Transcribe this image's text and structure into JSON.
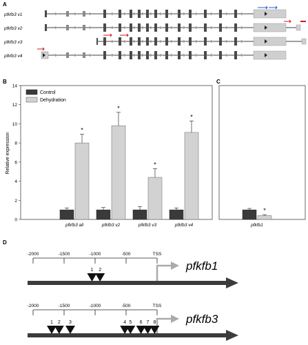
{
  "panels": {
    "a": "A",
    "b": "B",
    "c": "C",
    "d": "D"
  },
  "transcripts": [
    {
      "name": "pfkfb3 v1"
    },
    {
      "name": "pfkfb3 v2"
    },
    {
      "name": "pfkfb3 v3"
    },
    {
      "name": "pfkfb3 v4"
    }
  ],
  "legend": {
    "control": "Control",
    "dehydration": "Dehydration"
  },
  "colors": {
    "control": "#3a3a3a",
    "dehydration": "#d2d2d2",
    "exon": "#4a4a4a",
    "primer_red": "#d01a1a",
    "primer_blue": "#1f5fd0",
    "arrow_gray": "#aaaaaa"
  },
  "chart_data": [
    {
      "type": "bar",
      "ylabel": "Relative expression",
      "ylim": [
        0,
        14
      ],
      "yticks": [
        "0",
        "2",
        "4",
        "6",
        "8",
        "10",
        "12",
        "14"
      ],
      "categories": [
        "pfkfb3 all",
        "pfkfb3 v2",
        "pfkfb3 v3",
        "pfkfb3 v4"
      ],
      "series": [
        {
          "name": "Control",
          "values": [
            1.0,
            1.0,
            1.0,
            1.0
          ],
          "errors": [
            0.2,
            0.25,
            0.35,
            0.2
          ]
        },
        {
          "name": "Dehydration",
          "values": [
            8.0,
            9.8,
            4.4,
            9.1
          ],
          "errors": [
            0.9,
            1.4,
            0.9,
            1.2
          ]
        }
      ],
      "significance": [
        "*",
        "*",
        "*",
        "*"
      ]
    },
    {
      "type": "bar",
      "categories": [
        "pfkfb1"
      ],
      "ylim": [
        0,
        14
      ],
      "series": [
        {
          "name": "Control",
          "values": [
            1.0
          ],
          "errors": [
            0.15
          ]
        },
        {
          "name": "Dehydration",
          "values": [
            0.4
          ],
          "errors": [
            0.1
          ]
        }
      ],
      "significance": [
        "*"
      ]
    }
  ],
  "promoters": [
    {
      "gene": "pfkfb1",
      "scale_labels": [
        "-2000",
        "-1500",
        "-1000",
        "-500",
        "TSS"
      ],
      "sites": [
        {
          "label": "1",
          "pos": -1050
        },
        {
          "label": "2",
          "pos": -920
        }
      ]
    },
    {
      "gene": "pfkfb3",
      "scale_labels": [
        "-2000",
        "-1500",
        "-1000",
        "-500",
        "TSS"
      ],
      "sites": [
        {
          "label": "1",
          "pos": -1700
        },
        {
          "label": "2",
          "pos": -1580
        },
        {
          "label": "3",
          "pos": -1400
        },
        {
          "label": "4",
          "pos": -520
        },
        {
          "label": "5",
          "pos": -430
        },
        {
          "label": "6",
          "pos": -260
        },
        {
          "label": "7",
          "pos": -150
        },
        {
          "label": "8",
          "pos": -40
        }
      ]
    }
  ]
}
